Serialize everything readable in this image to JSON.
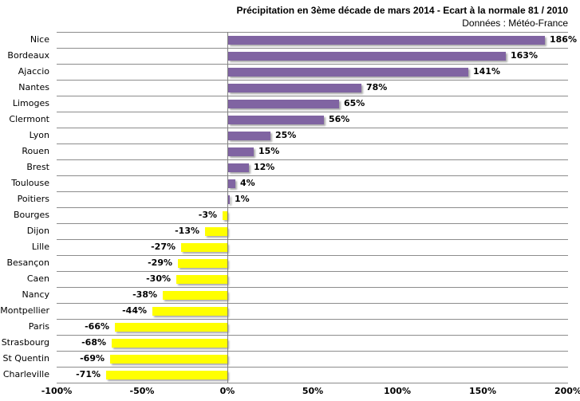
{
  "title": "Précipitation en 3ème décade de mars 2014 - Ecart à la normale 81 / 2010",
  "subtitle": "Données : Météo-France",
  "chart_data": {
    "type": "bar",
    "orientation": "horizontal",
    "title": "Précipitation en 3ème décade de mars 2014 - Ecart à la normale 81 / 2010",
    "subtitle": "Données : Météo-France",
    "categories": [
      "Nice",
      "Bordeaux",
      "Ajaccio",
      "Nantes",
      "Limoges",
      "Clermont",
      "Lyon",
      "Rouen",
      "Brest",
      "Toulouse",
      "Poitiers",
      "Bourges",
      "Dijon",
      "Lille",
      "Besançon",
      "Caen",
      "Nancy",
      "Montpellier",
      "Paris",
      "Strasbourg",
      "St Quentin",
      "Charleville"
    ],
    "values": [
      186,
      163,
      141,
      78,
      65,
      56,
      25,
      15,
      12,
      4,
      1,
      -3,
      -13,
      -27,
      -29,
      -30,
      -38,
      -44,
      -66,
      -68,
      -69,
      -71
    ],
    "value_labels": [
      "186%",
      "163%",
      "141%",
      "78%",
      "65%",
      "56%",
      "25%",
      "15%",
      "12%",
      "4%",
      "1%",
      "-3%",
      "-13%",
      "-27%",
      "-29%",
      "-30%",
      "-38%",
      "-44%",
      "-66%",
      "-68%",
      "-69%",
      "-71%"
    ],
    "x_ticks": [
      "-100%",
      "-50%",
      "0%",
      "50%",
      "100%",
      "150%",
      "200%"
    ],
    "xlim": [
      -100,
      200
    ],
    "xlabel": "",
    "ylabel": "",
    "legend": "none",
    "grid": "horizontal category separators + vertical zero axis",
    "bar_color_positive": "#8064A2",
    "bar_color_negative": "#FFFF00",
    "gridline_color": "#8C8C8C",
    "zero_axis_color": "#7F7F7F",
    "value_label_position": "outside end"
  }
}
